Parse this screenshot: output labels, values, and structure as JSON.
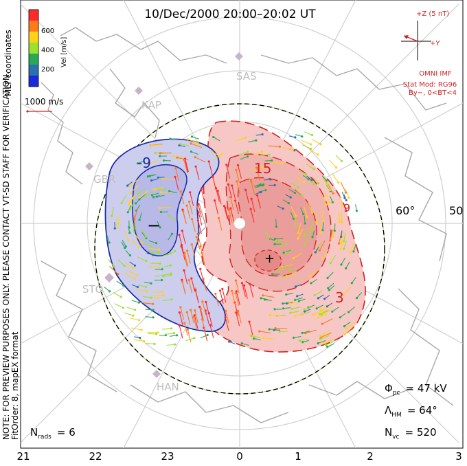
{
  "title": "10/Dec/2000 20:00–20:02 UT",
  "colorbar": {
    "label": "Vel [m/s]",
    "ticks": [
      "600",
      "400",
      "200"
    ],
    "colors": [
      "#ff2a2a",
      "#ff7a1a",
      "#ffd21a",
      "#9be22e",
      "#29a85a",
      "#2a70b0",
      "#1a2ad8"
    ]
  },
  "mlt_label": "MLT coordinates",
  "scale_vector": "1000 m/s",
  "stations": [
    "SAS",
    "KAP",
    "GBR",
    "STO",
    "HAN"
  ],
  "imf": {
    "z_label": "+Z (5 nT)",
    "y_label": "+Y",
    "source": "OMNI IMF",
    "model": "Stat Mod: RG96",
    "condition": "By−, 0<BT<4"
  },
  "note": "NOTE: FOR PREVIEW PURPOSES ONLY. PLEASE CONTACT VT-SD STAFF FOR VERIFICATION.",
  "fit_order": "FitOrder: 8,  mapEX format",
  "contour_labels": [
    "-9",
    "15",
    "3",
    "9"
  ],
  "min_symbol": "−",
  "max_symbol": "+",
  "latitude_labels": [
    "60°",
    "50°"
  ],
  "stats": {
    "phi_label": "Φ",
    "phi_sub": "pc",
    "phi_value": "= 47 kV",
    "lambda_label": "Λ",
    "lambda_sub": "HM",
    "lambda_value": "= 64°",
    "nvc_label": "N",
    "nvc_sub": "vc",
    "nvc_value": "= 520",
    "nrads_label": "N",
    "nrads_sub": "rads",
    "nrads_value": "= 6"
  },
  "mlt_ticks": [
    "21",
    "22",
    "23",
    "0",
    "1",
    "2",
    "3"
  ],
  "colors": {
    "positive_fill": "#f6c7c4",
    "positive_core": "#ef9b98",
    "negative_fill": "#c9c9ec",
    "positive_line": "#d42020",
    "negative_line": "#1428a8"
  },
  "chart_data": {
    "type": "map",
    "title": "10/Dec/2000 20:00–20:02 UT",
    "cross_polar_cap_potential_kV": 47,
    "heppner_maynard_boundary_deg": 64,
    "vector_count": 520,
    "radar_count": 6,
    "velocity_scale": {
      "label": "Vel [m/s]",
      "min": 0,
      "max": 700,
      "ticks": [
        200,
        400,
        600
      ]
    },
    "mlt_axis": {
      "ticks": [
        21,
        22,
        23,
        0,
        1,
        2,
        3
      ]
    },
    "latitude_labels": [
      60,
      50
    ],
    "potential_contours_kV": [
      -9,
      3,
      9,
      15
    ]
  }
}
